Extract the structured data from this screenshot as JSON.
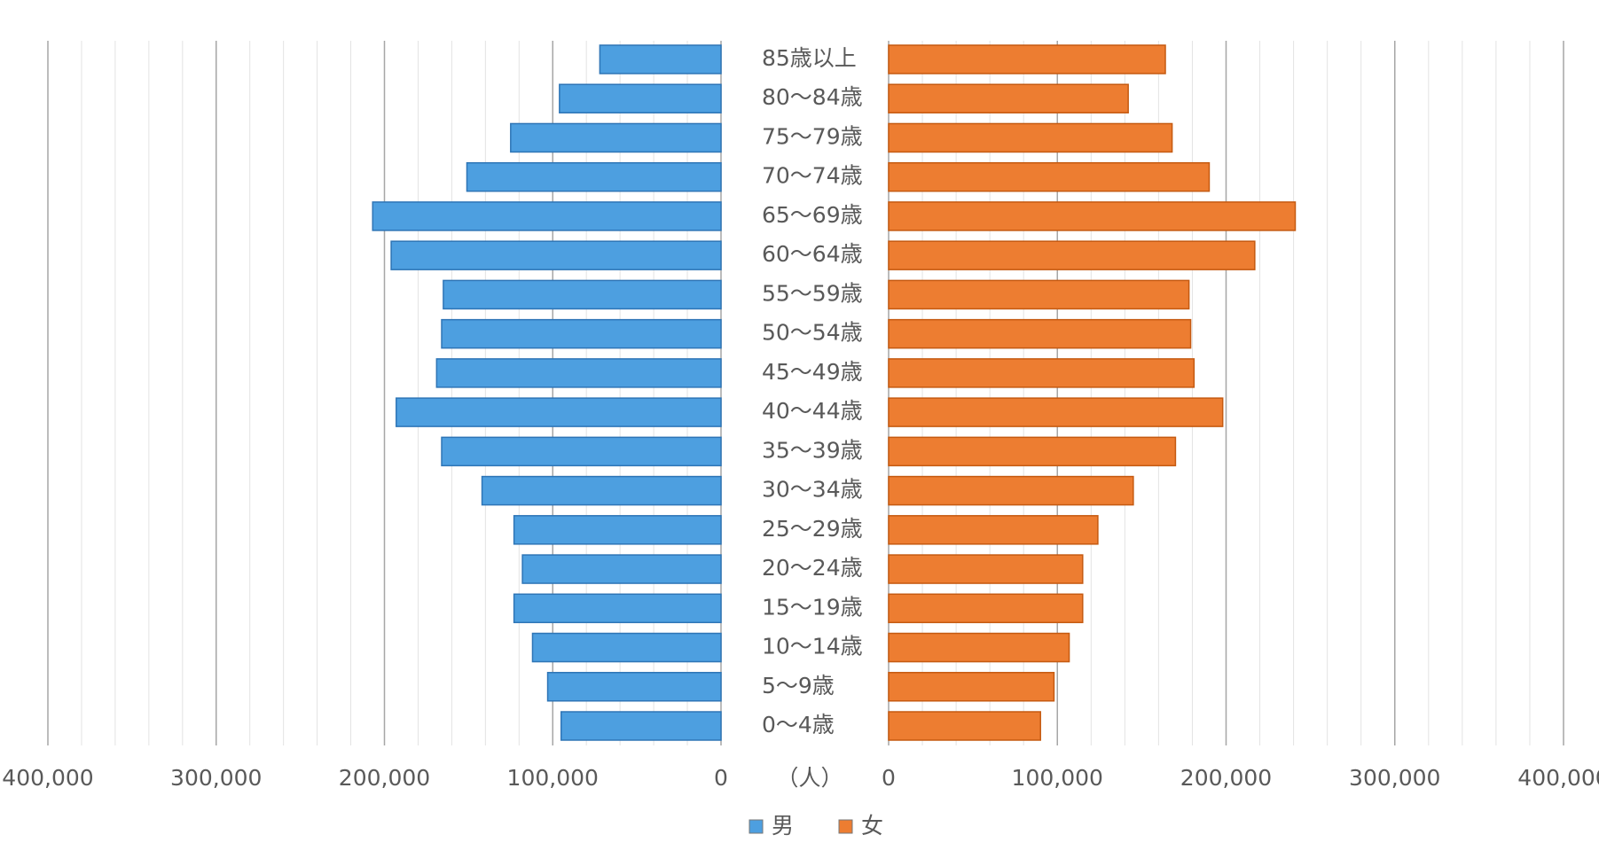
{
  "chart_data": {
    "type": "pyramid",
    "categories": [
      "85歳以上",
      "80～84歳",
      "75～79歳",
      "70～74歳",
      "65～69歳",
      "60～64歳",
      "55～59歳",
      "50～54歳",
      "45～49歳",
      "40～44歳",
      "35～39歳",
      "30～34歳",
      "25～29歳",
      "20～24歳",
      "15～19歳",
      "10～14歳",
      "5～9歳",
      "0～4歳"
    ],
    "series": [
      {
        "name": "男",
        "color": "#4d9fe0",
        "values": [
          72000,
          96000,
          125000,
          151000,
          207000,
          196000,
          165000,
          166000,
          169000,
          193000,
          166000,
          142000,
          123000,
          118000,
          123000,
          112000,
          103000,
          95000
        ]
      },
      {
        "name": "女",
        "color": "#ed7d31",
        "values": [
          164000,
          142000,
          168000,
          190000,
          241000,
          217000,
          178000,
          179000,
          181000,
          198000,
          170000,
          145000,
          124000,
          115000,
          115000,
          107000,
          98000,
          90000
        ]
      }
    ],
    "xlim": [
      0,
      400000
    ],
    "xticks": [
      0,
      {
        "value": 100000,
        "label": "100,000"
      },
      {
        "value": 200000,
        "label": "200,000"
      },
      {
        "value": 300000,
        "label": "300,000"
      },
      {
        "value": 400000,
        "label": "400,000"
      }
    ],
    "unit_label": "（人）",
    "grid": true,
    "legend": "bottom"
  }
}
